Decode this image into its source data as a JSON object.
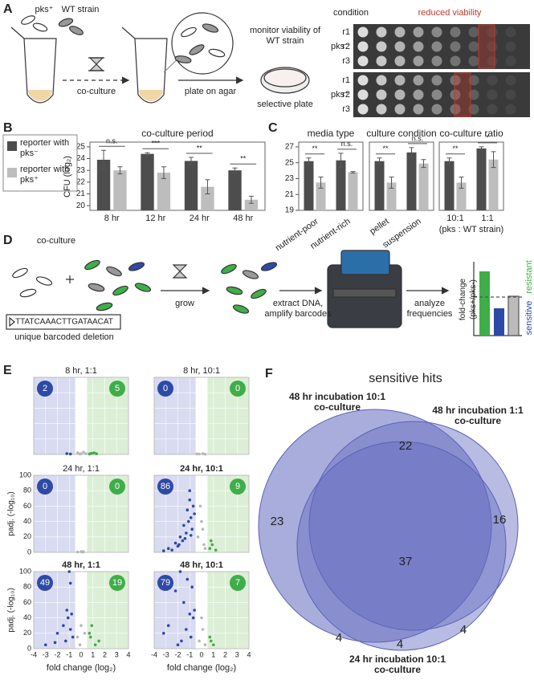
{
  "panel_a": {
    "letter": "A",
    "strain_pks": "pks⁺",
    "strain_wt": "WT strain",
    "step_coculture": "co-culture",
    "step_plate": "plate on agar",
    "monitor": "monitor viability of WT strain",
    "plate_label": "selective plate",
    "condition_header": "condition",
    "reduced_header": "reduced viability",
    "groups": [
      {
        "label": "pks⁻",
        "rows": [
          "r1",
          "r2",
          "r3"
        ]
      },
      {
        "label": "pks⁺",
        "rows": [
          "r1",
          "r2",
          "r3"
        ]
      }
    ]
  },
  "panel_b": {
    "letter": "B",
    "type": "bar",
    "title": "co-culture period",
    "y_label": "CFU (log₂)",
    "categories": [
      "8 hr",
      "12 hr",
      "24 hr",
      "48 hr"
    ],
    "series": [
      {
        "name": "reporter with pks⁻",
        "color": "#4d4d4d",
        "values": [
          23.9,
          24.4,
          23.8,
          23.0
        ],
        "errors": [
          0.8,
          0.1,
          0.3,
          0.2
        ]
      },
      {
        "name": "reporter with pks⁺",
        "color": "#bdbdbd",
        "values": [
          23.0,
          22.8,
          21.6,
          20.5
        ],
        "errors": [
          0.3,
          0.5,
          0.6,
          0.3
        ]
      }
    ],
    "significance": [
      "n.s.",
      "***",
      "**",
      "**"
    ],
    "ylim": [
      19.6,
      25.4
    ],
    "yticks": [
      20,
      21,
      22,
      23,
      24,
      25
    ]
  },
  "panel_c": {
    "letter": "C",
    "type": "bar",
    "ylim": [
      19,
      27.6
    ],
    "yticks": [
      19,
      21,
      23,
      25,
      27
    ],
    "x_note": "(pks : WT strain)",
    "subplots": [
      {
        "title": "media type",
        "categories": [
          "nutrient-poor",
          "nutrient-rich"
        ],
        "series": [
          {
            "color": "#4d4d4d",
            "values": [
              25.2,
              25.3
            ],
            "errors": [
              0.4,
              0.9
            ]
          },
          {
            "color": "#bdbdbd",
            "values": [
              22.5,
              23.8
            ],
            "errors": [
              0.7,
              0.1
            ]
          }
        ],
        "significance": [
          "**",
          "n.s."
        ]
      },
      {
        "title": "culture condition",
        "categories": [
          "pellet",
          "suspension"
        ],
        "series": [
          {
            "color": "#4d4d4d",
            "values": [
              25.2,
              26.3
            ],
            "errors": [
              0.4,
              0.6
            ]
          },
          {
            "color": "#bdbdbd",
            "values": [
              22.5,
              24.9
            ],
            "errors": [
              0.7,
              0.5
            ]
          }
        ],
        "significance": [
          "**",
          "n.s."
        ]
      },
      {
        "title": "co-culture ratio",
        "categories": [
          "10:1",
          "1:1"
        ],
        "series": [
          {
            "color": "#4d4d4d",
            "values": [
              25.2,
              26.8
            ],
            "errors": [
              0.4,
              0.2
            ]
          },
          {
            "color": "#bdbdbd",
            "values": [
              22.5,
              25.4
            ],
            "errors": [
              0.7,
              1.0
            ]
          }
        ],
        "significance": [
          "**",
          "*"
        ]
      }
    ]
  },
  "panel_d": {
    "letter": "D",
    "coculture": "co-culture",
    "barcode": "TTATCAAACTTGATAACAT",
    "barcode_label": "unique barcoded deletion",
    "grow": "grow",
    "extract": "extract DNA, amplify barcodes",
    "analyze": "analyze frequencies",
    "y_label": "fold-change (pks+/pks-)",
    "resistant": "resistant",
    "sensitive": "sensitive"
  },
  "panel_e": {
    "letter": "E",
    "type": "scatter",
    "x_label": "fold change (log₂)",
    "y_label": "padj. (-log₁₀)",
    "xlim": [
      -4,
      4
    ],
    "xticks": [
      -4,
      -3,
      -2,
      -1,
      0,
      1,
      2,
      3,
      4
    ],
    "ylim": [
      0,
      100
    ],
    "yticks": [
      0,
      20,
      40,
      60,
      80,
      100
    ],
    "grid": true,
    "fold_change_cutoff": [
      -0.5,
      0.5
    ],
    "colors": {
      "sensitive": "#2d4aa6",
      "resistant": "#3fae49",
      "other": "#b8b8b8",
      "sensitive_region": "#d9dbf0",
      "resistant_region": "#dcefd6"
    },
    "plots": [
      {
        "title": "8 hr, 1:1",
        "bold": false,
        "sensitive_count": 2,
        "resistant_count": 5,
        "points": {
          "other": {
            "x": [
              -0.3,
              0,
              0.2,
              0.4,
              -0.1
            ],
            "y": [
              2,
              1,
              3,
              1,
              0.5
            ]
          },
          "sensitive": {
            "x": [
              -1.2,
              -0.9
            ],
            "y": [
              1,
              0.5
            ]
          },
          "resistant": {
            "x": [
              0.8,
              1.1,
              0.7,
              0.9,
              1.3
            ],
            "y": [
              1,
              2,
              0.5,
              1.5,
              0.8
            ]
          }
        }
      },
      {
        "title": "8 hr, 10:1",
        "bold": false,
        "sensitive_count": 0,
        "resistant_count": 0,
        "points": {
          "other": {
            "x": [
              -0.2,
              0.1,
              0.3,
              -0.4
            ],
            "y": [
              0.5,
              1,
              0.3,
              0.6
            ]
          },
          "sensitive": {
            "x": [],
            "y": []
          },
          "resistant": {
            "x": [],
            "y": []
          }
        }
      },
      {
        "title": "24 hr, 1:1",
        "bold": false,
        "sensitive_count": 0,
        "resistant_count": 0,
        "points": {
          "other": {
            "x": [
              -0.3,
              0,
              0.2,
              0.1
            ],
            "y": [
              0.5,
              1,
              0.8,
              0.3
            ]
          },
          "sensitive": {
            "x": [],
            "y": []
          },
          "resistant": {
            "x": [],
            "y": []
          }
        }
      },
      {
        "title": "24 hr, 10:1",
        "bold": true,
        "sensitive_count": 86,
        "resistant_count": 9,
        "points": {
          "other": {
            "x": [
              -0.3,
              0,
              0.2,
              -0.1,
              0.3,
              0.1
            ],
            "y": [
              20,
              40,
              10,
              60,
              5,
              30
            ]
          },
          "sensitive": {
            "x": [
              -2.8,
              -2.2,
              -1.8,
              -1.5,
              -1.2,
              -1.0,
              -0.9,
              -0.8,
              -2.0,
              -1.6,
              -1.3,
              -1.1,
              -0.7,
              -2.5,
              -1.9,
              -1.4,
              -0.9,
              -3.2,
              -1.0,
              -0.6
            ],
            "y": [
              5,
              12,
              20,
              35,
              55,
              68,
              45,
              30,
              8,
              15,
              25,
              40,
              60,
              3,
              10,
              18,
              22,
              2,
              80,
              50
            ]
          },
          "resistant": {
            "x": [
              0.7,
              0.9,
              1.2,
              0.8
            ],
            "y": [
              5,
              10,
              3,
              15
            ]
          }
        }
      },
      {
        "title": "48 hr, 1:1",
        "bold": true,
        "sensitive_count": 49,
        "resistant_count": 19,
        "points": {
          "other": {
            "x": [
              -0.3,
              0,
              0.3,
              -0.1
            ],
            "y": [
              15,
              30,
              20,
              5
            ]
          },
          "sensitive": {
            "x": [
              -1.0,
              -0.9,
              -1.2,
              -0.8,
              -1.1,
              -1.5,
              -2.0,
              -0.9,
              -0.7,
              -1.3,
              -2.2,
              -3.0
            ],
            "y": [
              100,
              85,
              50,
              45,
              40,
              30,
              20,
              25,
              15,
              10,
              8,
              5
            ]
          },
          "resistant": {
            "x": [
              0.9,
              0.7,
              1.5,
              1.2,
              0.8
            ],
            "y": [
              30,
              20,
              10,
              5,
              15
            ]
          }
        }
      },
      {
        "title": "48 hr, 10:1",
        "bold": true,
        "sensitive_count": 79,
        "resistant_count": 7,
        "points": {
          "other": {
            "x": [
              -0.2,
              0.1,
              0.3,
              0
            ],
            "y": [
              10,
              25,
              5,
              40
            ]
          },
          "sensitive": {
            "x": [
              -1.8,
              -1.2,
              -0.8,
              -2.2,
              -1.5,
              -1.0,
              -0.7,
              -2.8,
              -3.2,
              -1.3,
              -0.9,
              -1.7,
              -2.0,
              -0.6
            ],
            "y": [
              100,
              90,
              80,
              75,
              60,
              45,
              40,
              30,
              20,
              25,
              15,
              10,
              5,
              50
            ]
          },
          "resistant": {
            "x": [
              0.8,
              1.0,
              0.7
            ],
            "y": [
              10,
              5,
              15
            ]
          }
        }
      }
    ]
  },
  "panel_f": {
    "letter": "F",
    "title": "sensitive hits",
    "sets": [
      "48 hr incubation 10:1 co-culture",
      "48 hr incubation 1:1 co-culture",
      "24 hr incubation 10:1 co-culture"
    ],
    "regions": [
      23,
      22,
      16,
      37,
      4,
      4,
      4
    ]
  }
}
